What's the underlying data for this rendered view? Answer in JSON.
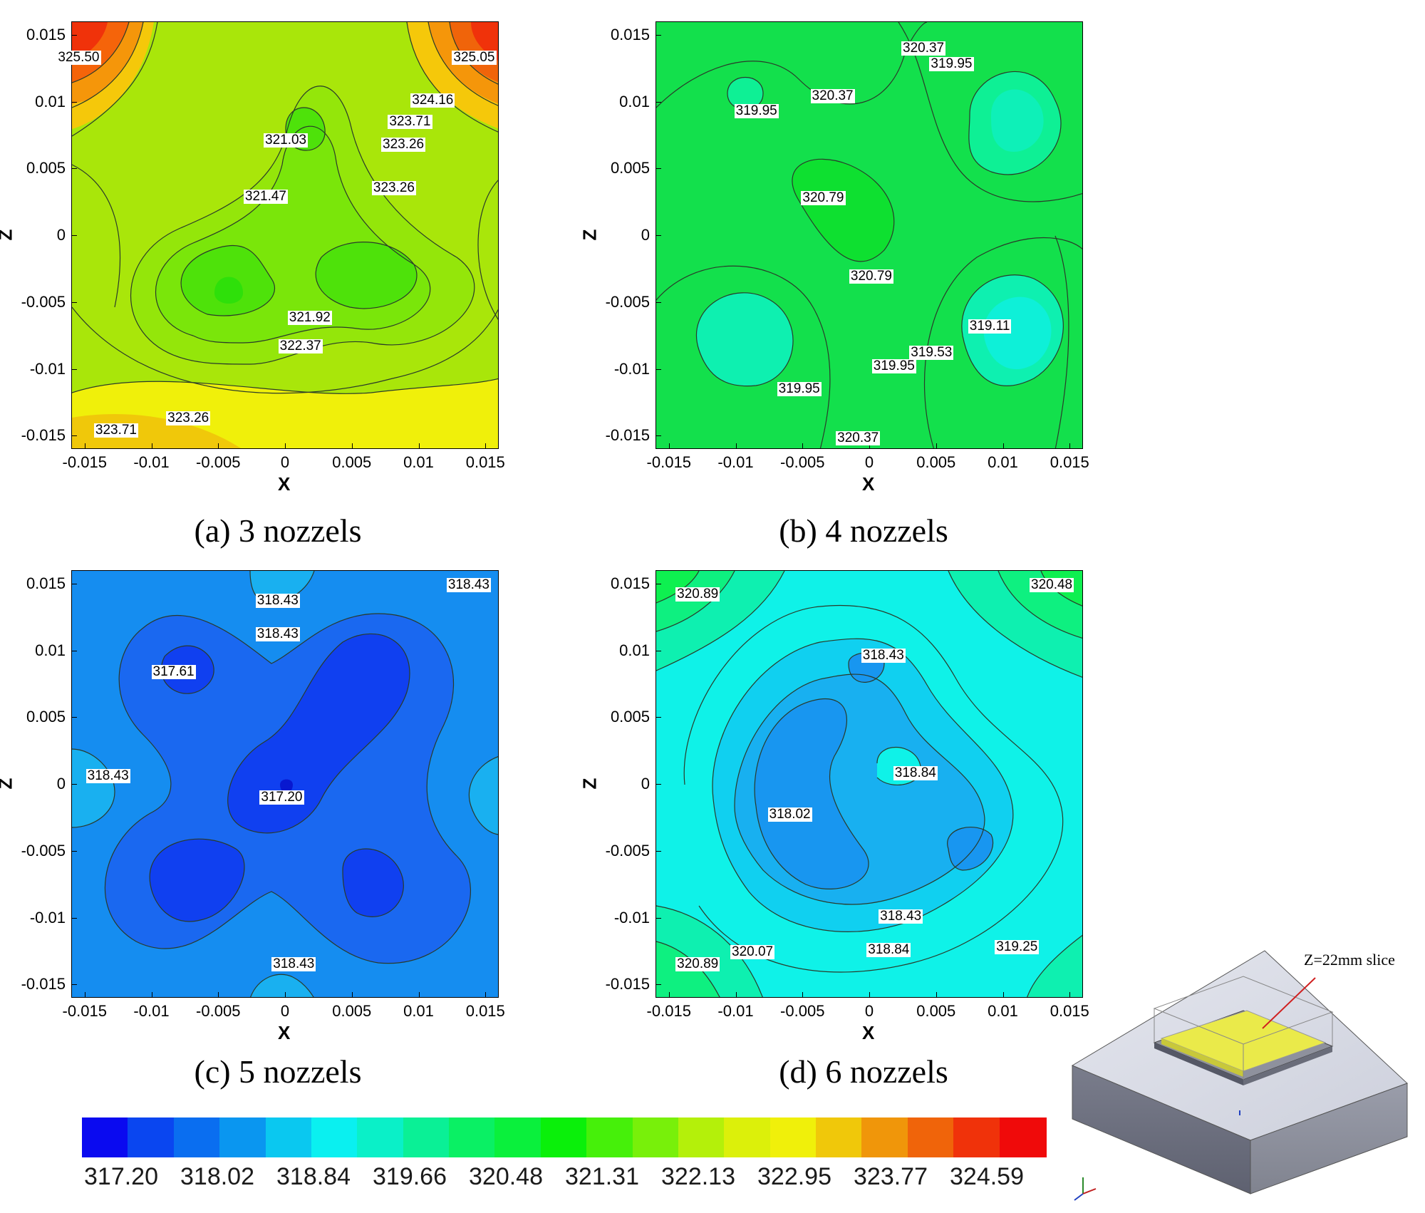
{
  "chart_data": [
    {
      "type": "contour",
      "id": "a",
      "title": "(a) 3 nozzels",
      "xlabel": "X",
      "ylabel": "Z",
      "xlim": [
        -0.016,
        0.016
      ],
      "ylim": [
        -0.016,
        0.016
      ],
      "xticks": [
        "-0.015",
        "-0.01",
        "-0.005",
        "0",
        "0.005",
        "0.01",
        "0.015"
      ],
      "yticks": [
        "0.015",
        "0.01",
        "0.005",
        "0",
        "-0.005",
        "-0.01",
        "-0.015"
      ],
      "background": "#a9e60a",
      "contour_labels": [
        {
          "text": "325.50",
          "x": -0.0155,
          "y": 0.0133
        },
        {
          "text": "325.05",
          "x": 0.0141,
          "y": 0.0133
        },
        {
          "text": "324.16",
          "x": 0.011,
          "y": 0.0101
        },
        {
          "text": "323.71",
          "x": 0.0093,
          "y": 0.0085
        },
        {
          "text": "323.26",
          "x": 0.0088,
          "y": 0.0068
        },
        {
          "text": "323.26",
          "x": 0.0081,
          "y": 0.0035
        },
        {
          "text": "321.03",
          "x": 0,
          "y": 0.0071
        },
        {
          "text": "321.47",
          "x": -0.0015,
          "y": 0.0029
        },
        {
          "text": "321.92",
          "x": 0.0018,
          "y": -0.0062
        },
        {
          "text": "322.37",
          "x": 0.0011,
          "y": -0.0083
        },
        {
          "text": "323.26",
          "x": -0.0073,
          "y": -0.0137
        },
        {
          "text": "323.71",
          "x": -0.0127,
          "y": -0.0146
        }
      ]
    },
    {
      "type": "contour",
      "id": "b",
      "title": "(b) 4 nozzels",
      "xlabel": "X",
      "ylabel": "Z",
      "xlim": [
        -0.016,
        0.016
      ],
      "ylim": [
        -0.016,
        0.016
      ],
      "xticks": [
        "-0.015",
        "-0.01",
        "-0.005",
        "0",
        "0.005",
        "0.01",
        "0.015"
      ],
      "yticks": [
        "0.015",
        "0.01",
        "0.005",
        "0",
        "-0.005",
        "-0.01",
        "-0.015"
      ],
      "background": "#13e04c",
      "contour_labels": [
        {
          "text": "320.37",
          "x": 0.004,
          "y": 0.014
        },
        {
          "text": "319.95",
          "x": 0.0061,
          "y": 0.0128
        },
        {
          "text": "320.37",
          "x": -0.0028,
          "y": 0.0104
        },
        {
          "text": "319.95",
          "x": -0.0085,
          "y": 0.0093
        },
        {
          "text": "320.79",
          "x": -0.0035,
          "y": 0.0028
        },
        {
          "text": "320.79",
          "x": 0.0001,
          "y": -0.0031
        },
        {
          "text": "319.11",
          "x": 0.009,
          "y": -0.0068
        },
        {
          "text": "319.53",
          "x": 0.0046,
          "y": -0.0088
        },
        {
          "text": "319.95",
          "x": 0.0018,
          "y": -0.0098
        },
        {
          "text": "319.95",
          "x": -0.0053,
          "y": -0.0115
        },
        {
          "text": "320.37",
          "x": -0.0009,
          "y": -0.0152
        }
      ]
    },
    {
      "type": "contour",
      "id": "c",
      "title": "(c) 5 nozzels",
      "xlabel": "X",
      "ylabel": "Z",
      "xlim": [
        -0.016,
        0.016
      ],
      "ylim": [
        -0.016,
        0.016
      ],
      "xticks": [
        "-0.015",
        "-0.01",
        "-0.005",
        "0",
        "0.005",
        "0.01",
        "0.015"
      ],
      "yticks": [
        "0.015",
        "0.01",
        "0.005",
        "0",
        "-0.005",
        "-0.01",
        "-0.015"
      ],
      "background": "#158df0",
      "contour_labels": [
        {
          "text": "318.43",
          "x": 0.0137,
          "y": 0.0149
        },
        {
          "text": "318.43",
          "x": -0.0006,
          "y": 0.0137
        },
        {
          "text": "318.43",
          "x": -0.0006,
          "y": 0.0112
        },
        {
          "text": "317.61",
          "x": -0.0084,
          "y": 0.0084
        },
        {
          "text": "318.43",
          "x": -0.0133,
          "y": 0.0006
        },
        {
          "text": "317.20",
          "x": -0.0003,
          "y": -0.001
        },
        {
          "text": "318.43",
          "x": 0.0006,
          "y": -0.0135
        }
      ]
    },
    {
      "type": "contour",
      "id": "d",
      "title": "(d) 6 nozzels",
      "xlabel": "X",
      "ylabel": "Z",
      "xlim": [
        -0.016,
        0.016
      ],
      "ylim": [
        -0.016,
        0.016
      ],
      "xticks": [
        "-0.015",
        "-0.01",
        "-0.005",
        "0",
        "0.005",
        "0.01",
        "0.015"
      ],
      "yticks": [
        "0.015",
        "0.01",
        "0.005",
        "0",
        "-0.005",
        "-0.01",
        "-0.015"
      ],
      "background": "#0ff2e8",
      "contour_labels": [
        {
          "text": "320.89",
          "x": -0.0129,
          "y": 0.0142
        },
        {
          "text": "320.48",
          "x": 0.0136,
          "y": 0.0149
        },
        {
          "text": "318.43",
          "x": 0.001,
          "y": 0.0096
        },
        {
          "text": "318.84",
          "x": 0.0034,
          "y": 0.0008
        },
        {
          "text": "318.02",
          "x": -0.006,
          "y": -0.0023
        },
        {
          "text": "318.43",
          "x": 0.0023,
          "y": -0.0099
        },
        {
          "text": "318.84",
          "x": 0.0014,
          "y": -0.0124
        },
        {
          "text": "319.25",
          "x": 0.011,
          "y": -0.0122
        },
        {
          "text": "320.07",
          "x": -0.0088,
          "y": -0.0126
        },
        {
          "text": "320.89",
          "x": -0.0129,
          "y": -0.0135
        }
      ]
    }
  ],
  "colorbar": {
    "ticks": [
      "317.20",
      "318.02",
      "318.84",
      "319.66",
      "320.48",
      "321.31",
      "322.13",
      "322.95",
      "323.77",
      "324.59"
    ],
    "colors": [
      "#0a0af0",
      "#0a46f0",
      "#0a6ef0",
      "#0a96f0",
      "#0ac8f0",
      "#0af0f0",
      "#0af0c8",
      "#0af096",
      "#0af064",
      "#0af03c",
      "#0af00a",
      "#46f00a",
      "#78f00a",
      "#b4f00a",
      "#dcf00a",
      "#f0f00a",
      "#f0c80a",
      "#f0960a",
      "#f0640a",
      "#f0320a",
      "#f00a0a"
    ]
  },
  "inset": {
    "slice_label": "Z=22mm slice"
  }
}
